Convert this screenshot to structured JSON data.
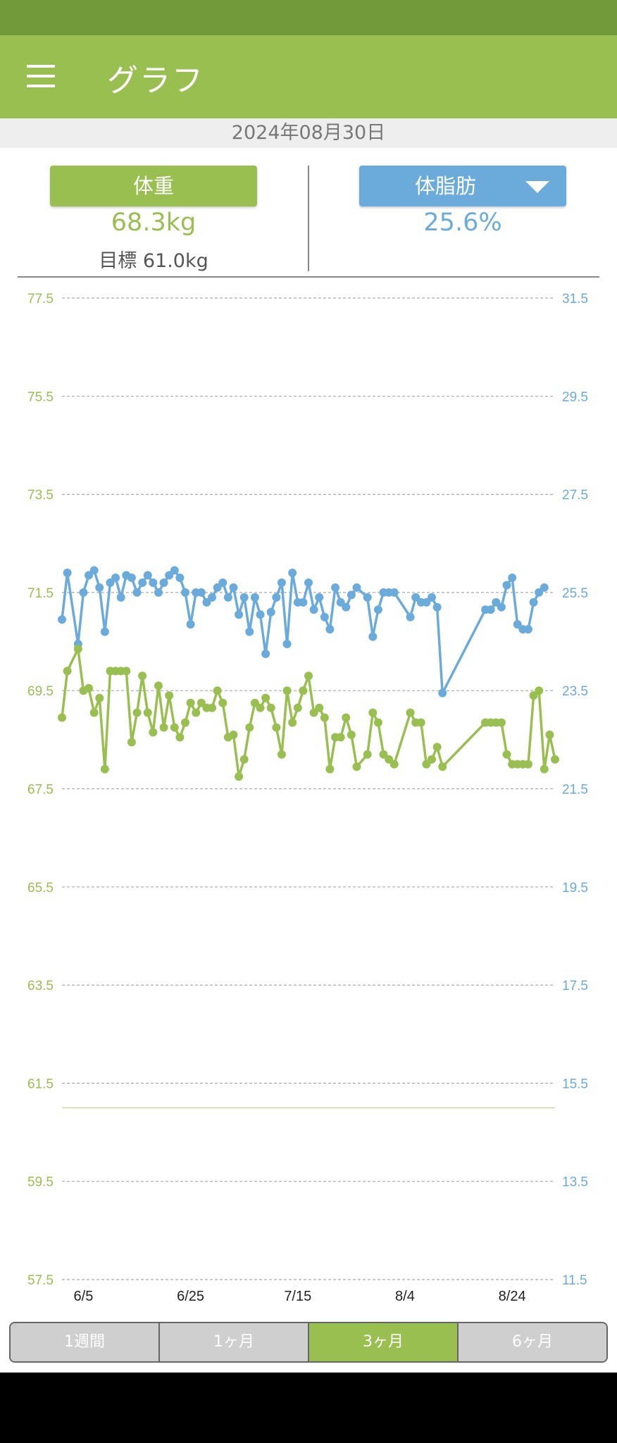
{
  "app": {
    "title": "グラフ"
  },
  "date": "2024年08月30日",
  "weight": {
    "label": "体重",
    "value": "68.3kg",
    "goal": "目標 61.0kg"
  },
  "body_fat": {
    "label": "体脂肪",
    "value": "25.6%"
  },
  "colors": {
    "accent": "#99bf50",
    "status_bar": "#72993a",
    "weight_series": "#99bf50",
    "fat_series": "#6aabdb",
    "tab_inactive": "#cfcfcf"
  },
  "icons": {
    "menu": "hamburger-menu-icon",
    "dropdown": "dropdown-triangle-icon"
  },
  "tabs": [
    {
      "label": "1週間",
      "active": false
    },
    {
      "label": "1ヶ月",
      "active": false
    },
    {
      "label": "3ヶ月",
      "active": true
    },
    {
      "label": "6ヶ月",
      "active": false
    }
  ],
  "chart_data": {
    "type": "line",
    "x_ticks": [
      "6/5",
      "6/25",
      "7/15",
      "8/4",
      "8/24"
    ],
    "y_left_ticks": [
      "77.5",
      "75.5",
      "73.5",
      "71.5",
      "69.5",
      "67.5",
      "65.5",
      "63.5",
      "61.5",
      "59.5",
      "57.5"
    ],
    "y_right_ticks": [
      "31.5",
      "29.5",
      "27.5",
      "25.5",
      "23.5",
      "21.5",
      "19.5",
      "17.5",
      "15.5",
      "13.5",
      "11.5"
    ],
    "y_left_range": [
      57.5,
      77.5
    ],
    "y_right_range": [
      11.5,
      31.5
    ],
    "x_range": [
      0,
      92
    ],
    "grid": true,
    "goal_line": 61.0,
    "x_tick_positions": [
      4,
      24,
      44,
      64,
      84
    ],
    "series": [
      {
        "axis": "right",
        "color": "#6aabdb",
        "points": [
          [
            0,
            24.95
          ],
          [
            1,
            25.9
          ],
          [
            3,
            24.45
          ],
          [
            4,
            25.5
          ],
          [
            5,
            25.85
          ],
          [
            6,
            25.95
          ],
          [
            7,
            25.6
          ],
          [
            8,
            24.7
          ],
          [
            9,
            25.7
          ],
          [
            10,
            25.8
          ],
          [
            11,
            25.4
          ],
          [
            12,
            25.85
          ],
          [
            13,
            25.8
          ],
          [
            14,
            25.5
          ],
          [
            15,
            25.7
          ],
          [
            16,
            25.85
          ],
          [
            17,
            25.7
          ],
          [
            18,
            25.5
          ],
          [
            19,
            25.7
          ],
          [
            20,
            25.85
          ],
          [
            21,
            25.95
          ],
          [
            22,
            25.8
          ],
          [
            23,
            25.5
          ],
          [
            24,
            24.85
          ],
          [
            25,
            25.5
          ],
          [
            26,
            25.5
          ],
          [
            27,
            25.3
          ],
          [
            28,
            25.4
          ],
          [
            29,
            25.6
          ],
          [
            30,
            25.7
          ],
          [
            31,
            25.4
          ],
          [
            32,
            25.6
          ],
          [
            33,
            25.05
          ],
          [
            34,
            25.4
          ],
          [
            35,
            24.7
          ],
          [
            36,
            25.4
          ],
          [
            37,
            25.05
          ],
          [
            38,
            24.25
          ],
          [
            39,
            25.1
          ],
          [
            40,
            25.4
          ],
          [
            41,
            25.7
          ],
          [
            42,
            24.45
          ],
          [
            43,
            25.9
          ],
          [
            44,
            25.3
          ],
          [
            45,
            25.3
          ],
          [
            46,
            25.7
          ],
          [
            47,
            25.15
          ],
          [
            48,
            25.4
          ],
          [
            49,
            25.0
          ],
          [
            50,
            24.75
          ],
          [
            51,
            25.6
          ],
          [
            52,
            25.3
          ],
          [
            53,
            25.2
          ],
          [
            54,
            25.45
          ],
          [
            55,
            25.6
          ],
          [
            57,
            25.4
          ],
          [
            58,
            24.6
          ],
          [
            59,
            25.15
          ],
          [
            60,
            25.5
          ],
          [
            61,
            25.5
          ],
          [
            62,
            25.5
          ],
          [
            65,
            25.0
          ],
          [
            66,
            25.4
          ],
          [
            67,
            25.3
          ],
          [
            68,
            25.3
          ],
          [
            69,
            25.4
          ],
          [
            70,
            25.2
          ],
          [
            71,
            23.45
          ],
          [
            79,
            25.15
          ],
          [
            80,
            25.15
          ],
          [
            81,
            25.3
          ],
          [
            82,
            25.2
          ],
          [
            83,
            25.65
          ],
          [
            84,
            25.8
          ],
          [
            85,
            24.85
          ],
          [
            86,
            24.75
          ],
          [
            87,
            24.75
          ],
          [
            88,
            25.3
          ],
          [
            89,
            25.5
          ],
          [
            90,
            25.6
          ]
        ]
      },
      {
        "axis": "left",
        "color": "#99bf50",
        "points": [
          [
            0,
            68.95
          ],
          [
            1,
            69.9
          ],
          [
            3,
            70.35
          ],
          [
            4,
            69.5
          ],
          [
            5,
            69.55
          ],
          [
            6,
            69.05
          ],
          [
            7,
            69.35
          ],
          [
            8,
            67.9
          ],
          [
            9,
            69.9
          ],
          [
            10,
            69.9
          ],
          [
            11,
            69.9
          ],
          [
            12,
            69.9
          ],
          [
            13,
            68.45
          ],
          [
            14,
            69.05
          ],
          [
            15,
            69.8
          ],
          [
            16,
            69.05
          ],
          [
            17,
            68.65
          ],
          [
            18,
            69.6
          ],
          [
            19,
            68.75
          ],
          [
            20,
            69.4
          ],
          [
            21,
            68.75
          ],
          [
            22,
            68.55
          ],
          [
            23,
            68.85
          ],
          [
            24,
            69.25
          ],
          [
            25,
            69.05
          ],
          [
            26,
            69.25
          ],
          [
            27,
            69.15
          ],
          [
            28,
            69.15
          ],
          [
            29,
            69.5
          ],
          [
            30,
            69.25
          ],
          [
            31,
            68.55
          ],
          [
            32,
            68.6
          ],
          [
            33,
            67.75
          ],
          [
            34,
            68.1
          ],
          [
            35,
            68.75
          ],
          [
            36,
            69.25
          ],
          [
            37,
            69.15
          ],
          [
            38,
            69.35
          ],
          [
            39,
            69.15
          ],
          [
            40,
            68.75
          ],
          [
            41,
            68.2
          ],
          [
            42,
            69.5
          ],
          [
            43,
            68.85
          ],
          [
            44,
            69.15
          ],
          [
            45,
            69.5
          ],
          [
            46,
            69.8
          ],
          [
            47,
            69.05
          ],
          [
            48,
            69.15
          ],
          [
            49,
            68.95
          ],
          [
            50,
            67.9
          ],
          [
            51,
            68.55
          ],
          [
            52,
            68.55
          ],
          [
            53,
            68.95
          ],
          [
            54,
            68.6
          ],
          [
            55,
            67.95
          ],
          [
            57,
            68.2
          ],
          [
            58,
            69.05
          ],
          [
            59,
            68.85
          ],
          [
            60,
            68.2
          ],
          [
            61,
            68.1
          ],
          [
            62,
            68.0
          ],
          [
            65,
            69.05
          ],
          [
            66,
            68.85
          ],
          [
            67,
            68.85
          ],
          [
            68,
            68.0
          ],
          [
            69,
            68.1
          ],
          [
            70,
            68.35
          ],
          [
            71,
            67.95
          ],
          [
            79,
            68.85
          ],
          [
            80,
            68.85
          ],
          [
            81,
            68.85
          ],
          [
            82,
            68.85
          ],
          [
            83,
            68.2
          ],
          [
            84,
            68.0
          ],
          [
            85,
            68.0
          ],
          [
            86,
            68.0
          ],
          [
            87,
            68.0
          ],
          [
            88,
            69.4
          ],
          [
            89,
            69.5
          ],
          [
            90,
            67.9
          ],
          [
            91,
            68.6
          ],
          [
            92,
            68.1
          ]
        ]
      }
    ]
  }
}
